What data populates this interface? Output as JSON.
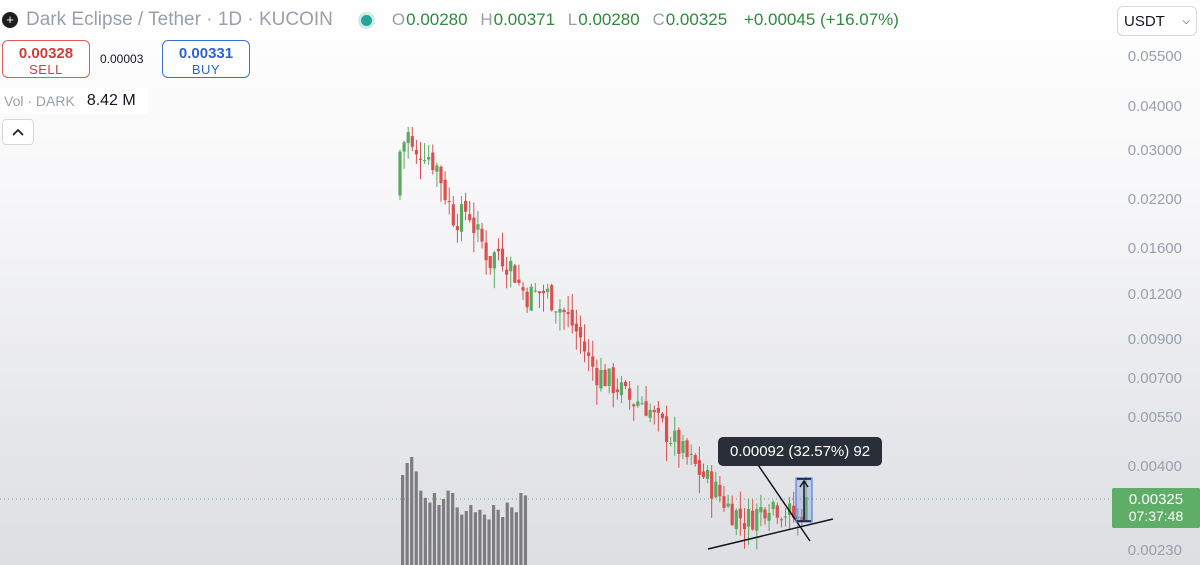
{
  "header": {
    "logo_icon": "plus-circle-icon",
    "symbol_title": "Dark Eclipse / Tether · 1D · KUCOIN",
    "ohlc": {
      "o_key": "O",
      "o_val": "0.00280",
      "h_key": "H",
      "h_val": "0.00371",
      "l_key": "L",
      "l_val": "0.00280",
      "c_key": "C",
      "c_val": "0.00325",
      "change": "+0.00045 (+16.07%)"
    }
  },
  "trade": {
    "sell_price": "0.00328",
    "sell_label": "SELL",
    "spread": "0.00003",
    "buy_price": "0.00331",
    "buy_label": "BUY"
  },
  "volume": {
    "label": "Vol · DARK",
    "value": "8.42 M"
  },
  "collapse_icon": "chevron-up-icon",
  "currency": {
    "selected": "USDT",
    "icon": "chevron-down-icon"
  },
  "price_axis": [
    "0.05500",
    "0.04000",
    "0.03000",
    "0.02200",
    "0.01600",
    "0.01200",
    "0.00900",
    "0.00700",
    "0.00550",
    "0.00400",
    "0.00230"
  ],
  "last_price": {
    "value": "0.00325",
    "countdown": "07:37:48"
  },
  "measure_tooltip": "0.00092 (32.57%) 92",
  "colors": {
    "up": "#5aa95f",
    "down": "#d9504f",
    "volume": "#7d7d80",
    "tooltip_bg": "#2a2e39"
  },
  "chart_data": {
    "type": "candlestick",
    "symbol": "Dark Eclipse / Tether",
    "interval": "1D",
    "exchange": "KUCOIN",
    "y_scale": "log",
    "y_ticks": [
      0.055,
      0.04,
      0.03,
      0.022,
      0.016,
      0.012,
      0.009,
      0.007,
      0.0055,
      0.004,
      0.0023
    ],
    "last_candle": {
      "open": 0.0028,
      "high": 0.00371,
      "low": 0.0028,
      "close": 0.00325
    },
    "trend_close": [
      0.03,
      0.034,
      0.028,
      0.031,
      0.029,
      0.027,
      0.023,
      0.02,
      0.0195,
      0.021,
      0.018,
      0.0165,
      0.0148,
      0.016,
      0.015,
      0.0142,
      0.0125,
      0.0119,
      0.012,
      0.0122,
      0.0118,
      0.0112,
      0.0105,
      0.0098,
      0.009,
      0.0079,
      0.0073,
      0.0071,
      0.0068,
      0.0066,
      0.0062,
      0.006,
      0.0061,
      0.0058,
      0.0053,
      0.0051,
      0.0048,
      0.0045,
      0.0042,
      0.004,
      0.0038,
      0.0036,
      0.0034,
      0.0032,
      0.003,
      0.0029,
      0.0028,
      0.0029,
      0.003,
      0.0032,
      0.0031,
      0.003,
      0.0029,
      0.0028,
      0.00325
    ],
    "volume_relative": [
      0.75,
      0.85,
      0.9,
      0.78,
      0.62,
      0.56,
      0.52,
      0.6,
      0.5,
      0.55,
      0.62,
      0.6,
      0.48,
      0.42,
      0.45,
      0.5,
      0.44,
      0.46,
      0.42,
      0.38,
      0.5,
      0.46,
      0.4,
      0.52,
      0.48,
      0.44,
      0.6,
      0.58
    ],
    "gridlines": false
  }
}
